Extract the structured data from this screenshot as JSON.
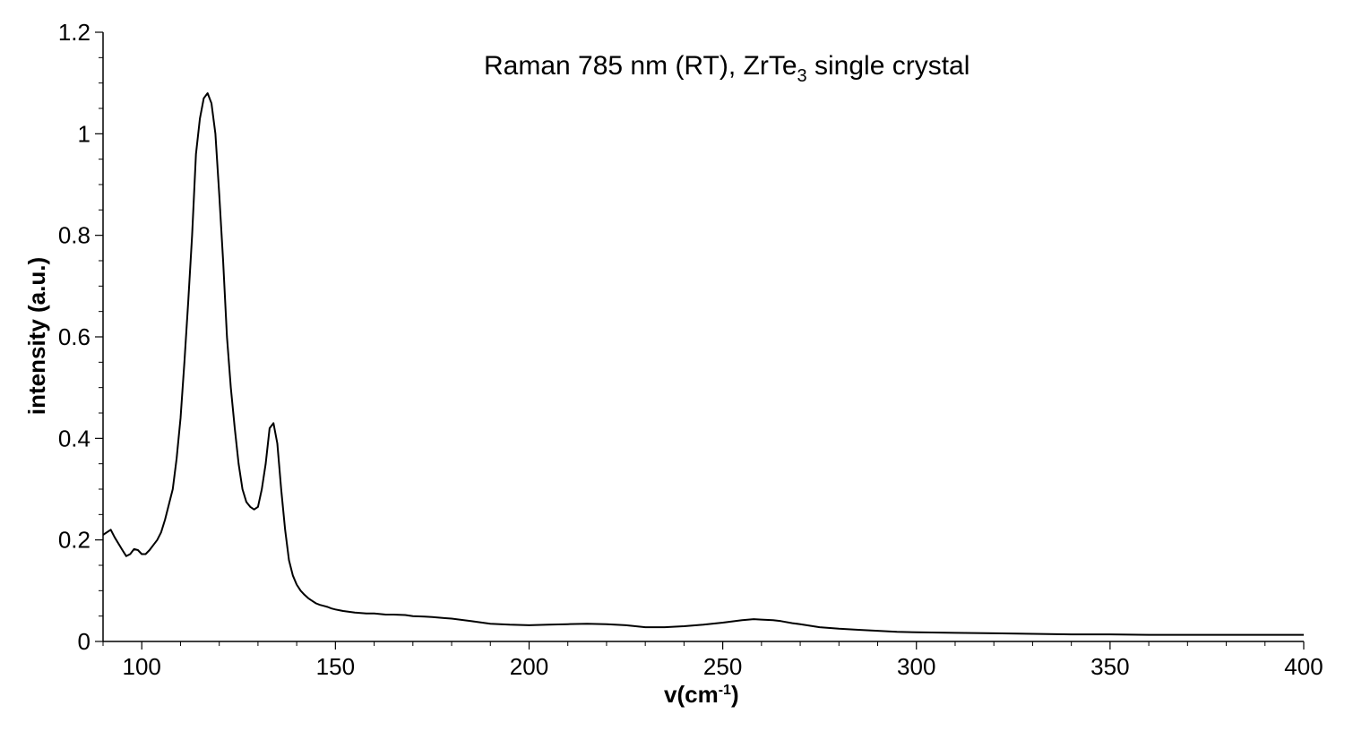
{
  "chart_data": {
    "type": "line",
    "title": "Raman 785 nm (RT), ZrTe",
    "title_subscript": "3",
    "title_suffix": " single crystal",
    "xlabel": "v(cm",
    "xlabel_superscript": "-1",
    "xlabel_suffix": ")",
    "ylabel": "intensity (a.u.)",
    "xlim": [
      90,
      400
    ],
    "ylim": [
      0,
      1.2
    ],
    "x_ticks": [
      100,
      150,
      200,
      250,
      300,
      350,
      400
    ],
    "y_ticks": [
      0,
      0.2,
      0.4,
      0.6,
      0.8,
      1,
      1.2
    ],
    "x_minor_step": 10,
    "y_minor_step": 0.05,
    "grid": false,
    "line_color": "#000000",
    "series": [
      {
        "x": [
          90,
          92,
          93,
          95,
          96,
          97,
          98,
          99,
          100,
          101,
          102,
          103,
          104,
          105,
          106,
          107,
          108,
          109,
          110,
          111,
          112,
          113,
          114,
          115,
          116,
          117,
          118,
          119,
          120,
          121,
          122,
          123,
          124,
          125,
          126,
          127,
          128,
          129,
          130,
          131,
          132,
          133,
          134,
          135,
          136,
          137,
          138,
          139,
          140,
          141,
          142,
          143,
          144,
          145,
          146,
          147,
          148,
          149,
          150,
          152,
          155,
          158,
          160,
          163,
          165,
          168,
          170,
          173,
          175,
          178,
          180,
          185,
          190,
          195,
          200,
          205,
          210,
          215,
          220,
          225,
          230,
          235,
          240,
          245,
          250,
          255,
          258,
          260,
          263,
          265,
          268,
          270,
          275,
          280,
          285,
          290,
          295,
          300,
          310,
          320,
          330,
          340,
          350,
          360,
          370,
          380,
          390,
          400
        ],
        "y": [
          0.21,
          0.22,
          0.205,
          0.18,
          0.168,
          0.172,
          0.182,
          0.18,
          0.172,
          0.172,
          0.18,
          0.19,
          0.2,
          0.215,
          0.24,
          0.27,
          0.3,
          0.36,
          0.44,
          0.55,
          0.67,
          0.8,
          0.96,
          1.03,
          1.07,
          1.08,
          1.06,
          1.0,
          0.88,
          0.75,
          0.6,
          0.5,
          0.42,
          0.35,
          0.3,
          0.275,
          0.265,
          0.26,
          0.265,
          0.3,
          0.35,
          0.42,
          0.43,
          0.39,
          0.3,
          0.22,
          0.16,
          0.13,
          0.112,
          0.1,
          0.092,
          0.085,
          0.08,
          0.075,
          0.072,
          0.07,
          0.068,
          0.065,
          0.063,
          0.06,
          0.057,
          0.055,
          0.055,
          0.053,
          0.053,
          0.052,
          0.05,
          0.049,
          0.048,
          0.046,
          0.045,
          0.04,
          0.035,
          0.033,
          0.032,
          0.033,
          0.034,
          0.035,
          0.034,
          0.032,
          0.028,
          0.028,
          0.03,
          0.033,
          0.037,
          0.042,
          0.044,
          0.043,
          0.042,
          0.04,
          0.036,
          0.034,
          0.028,
          0.025,
          0.023,
          0.021,
          0.019,
          0.018,
          0.017,
          0.016,
          0.015,
          0.014,
          0.014,
          0.013,
          0.013,
          0.013,
          0.013,
          0.013
        ]
      }
    ]
  }
}
